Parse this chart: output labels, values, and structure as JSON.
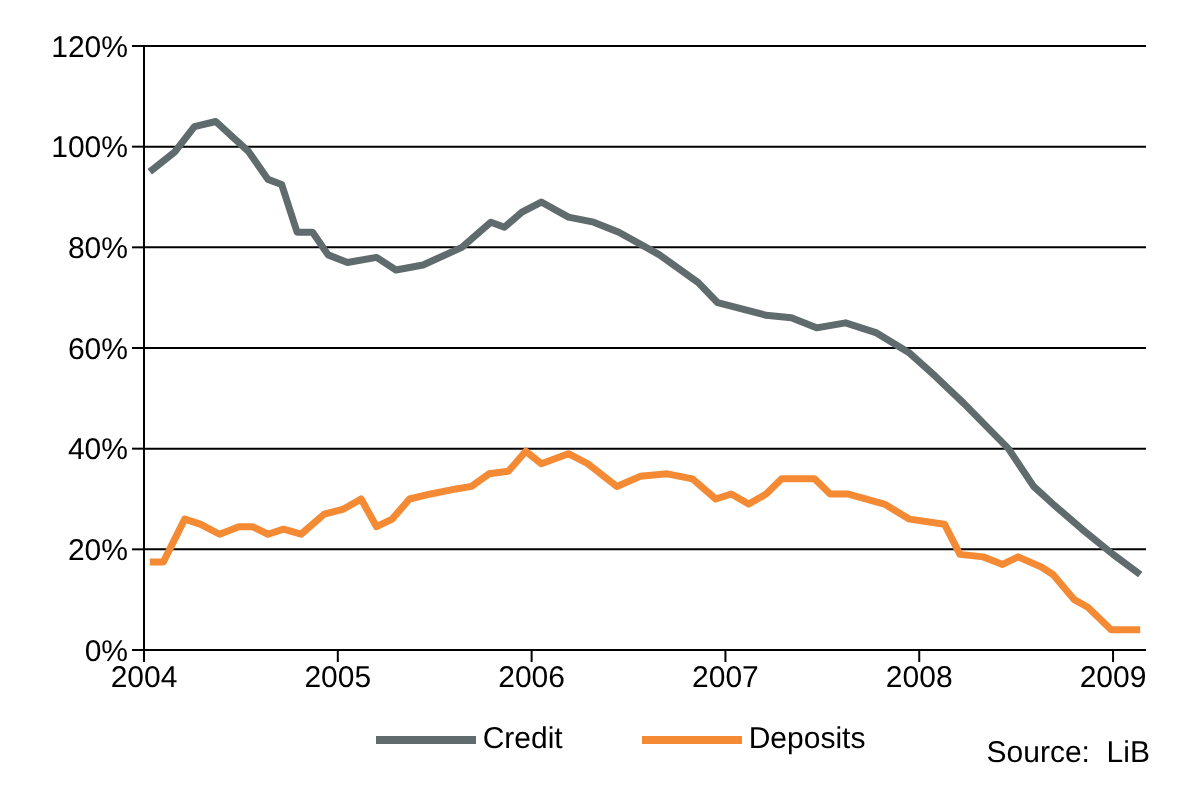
{
  "chart_data": {
    "type": "line",
    "series": [
      {
        "name": "Credit",
        "color": "#5f6b6d",
        "x": [
          2004.03,
          2004.16,
          2004.26,
          2004.37,
          2004.54,
          2004.64,
          2004.71,
          2004.79,
          2004.87,
          2004.95,
          2005.05,
          2005.2,
          2005.3,
          2005.44,
          2005.64,
          2005.79,
          2005.86,
          2005.95,
          2006.05,
          2006.19,
          2006.32,
          2006.45,
          2006.66,
          2006.86,
          2006.96,
          2007.21,
          2007.34,
          2007.47,
          2007.62,
          2007.78,
          2007.95,
          2008.08,
          2008.23,
          2008.46,
          2008.59,
          2008.69,
          2008.84,
          2009.0,
          2009.14
        ],
        "values": [
          95,
          99,
          104,
          105,
          99,
          93.5,
          92.5,
          83,
          83,
          78.5,
          77,
          78,
          75.5,
          76.5,
          80,
          85,
          84,
          87,
          89,
          86,
          85,
          83,
          78.5,
          73,
          69,
          66.5,
          66,
          64,
          65,
          63,
          59,
          54.5,
          49,
          40,
          32.5,
          29,
          24,
          19,
          15
        ]
      },
      {
        "name": "Deposits",
        "color": "#f58a35",
        "x": [
          2004.03,
          2004.1,
          2004.21,
          2004.29,
          2004.39,
          2004.49,
          2004.56,
          2004.64,
          2004.72,
          2004.81,
          2004.93,
          2005.03,
          2005.12,
          2005.2,
          2005.28,
          2005.37,
          2005.48,
          2005.61,
          2005.69,
          2005.78,
          2005.88,
          2005.97,
          2006.05,
          2006.19,
          2006.29,
          2006.44,
          2006.56,
          2006.7,
          2006.83,
          2006.95,
          2007.03,
          2007.12,
          2007.21,
          2007.29,
          2007.46,
          2007.54,
          2007.63,
          2007.82,
          2007.95,
          2008.13,
          2008.21,
          2008.33,
          2008.43,
          2008.51,
          2008.63,
          2008.69,
          2008.8,
          2008.87,
          2008.99,
          2009.14
        ],
        "values": [
          17.5,
          17.5,
          26,
          25,
          23,
          24.5,
          24.5,
          23,
          24,
          23,
          27,
          28,
          30,
          24.5,
          26,
          30,
          31,
          32,
          32.5,
          35,
          35.5,
          39.5,
          37,
          39,
          37,
          32.5,
          34.5,
          35,
          34,
          30,
          31,
          29,
          31,
          34,
          34,
          31,
          31,
          29,
          26,
          25,
          19,
          18.5,
          17,
          18.5,
          16.5,
          15,
          10,
          8.5,
          4,
          4
        ]
      }
    ],
    "xlim": [
      2004,
      2009.17
    ],
    "xticks": [
      2004,
      2005,
      2006,
      2007,
      2008,
      2009
    ],
    "ylim": [
      0,
      120
    ],
    "yticks": [
      {
        "value": 0,
        "label": "0%"
      },
      {
        "value": 20,
        "label": "20%"
      },
      {
        "value": 40,
        "label": "40%"
      },
      {
        "value": 60,
        "label": "60%"
      },
      {
        "value": 80,
        "label": "80%"
      },
      {
        "value": 100,
        "label": "100%"
      },
      {
        "value": 120,
        "label": "120%"
      }
    ],
    "grid": "y",
    "legend": "bottom",
    "marker": "none",
    "line_style": "solid",
    "annotations": [
      "Source:  LiB"
    ]
  }
}
